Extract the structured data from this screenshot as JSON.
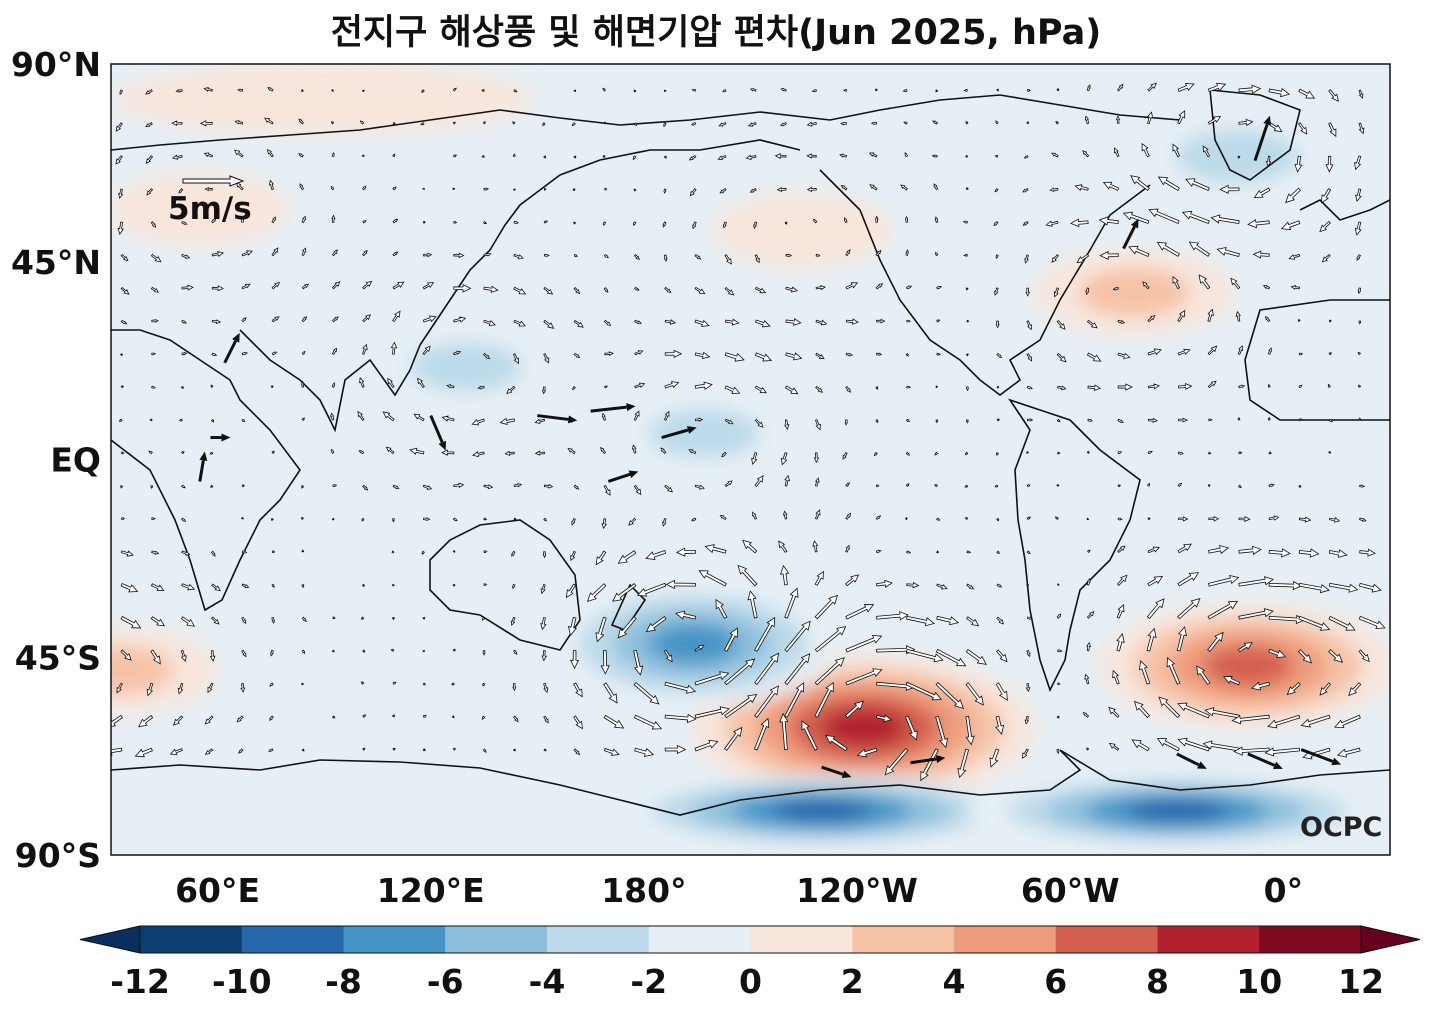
{
  "title": "전지구 해상풍 및 해면기압 편차(Jun 2025, hPa)",
  "credit": "OCPC",
  "reference_vector_label": "5m/s",
  "y_tick_labels": [
    "90°N",
    "45°N",
    "EQ",
    "45°S",
    "90°S"
  ],
  "x_tick_labels": [
    "60°E",
    "120°E",
    "180°",
    "120°W",
    "60°W",
    "0°"
  ],
  "colorbar": {
    "tick_labels": [
      "-12",
      "-10",
      "-8",
      "-6",
      "-4",
      "-2",
      "0",
      "2",
      "4",
      "6",
      "8",
      "10",
      "12"
    ],
    "colors": [
      "#0d3e72",
      "#2668ab",
      "#4594c6",
      "#8ec0dd",
      "#bcdaea",
      "#e6eff5",
      "#f8e6dd",
      "#f6c2a6",
      "#ee9b7b",
      "#d45f4e",
      "#b2222e",
      "#7e0b22"
    ],
    "under_color": "#0a2f5c",
    "over_color": "#67001f"
  },
  "chart_data": {
    "type": "heatmap",
    "title": "전지구 해상풍 및 해면기압 편차(Jun 2025, hPa)",
    "variable": "sea level pressure anomaly (shading) and surface wind anomaly (vectors)",
    "units": "hPa",
    "levels": [
      -12,
      -10,
      -8,
      -6,
      -4,
      -2,
      0,
      2,
      4,
      6,
      8,
      10,
      12
    ],
    "lon_range": [
      30,
      390
    ],
    "lat_range": [
      -90,
      90
    ],
    "anomaly_centers": [
      {
        "lon": 242,
        "lat": -61,
        "value": 9
      },
      {
        "lon": 350,
        "lat": -47,
        "value": 7
      },
      {
        "lon": 194,
        "lat": -42,
        "value": -7
      },
      {
        "lon": 130,
        "lat": 21,
        "value": -3
      },
      {
        "lon": 197,
        "lat": 6,
        "value": -3
      },
      {
        "lon": 347,
        "lat": 69,
        "value": -4
      },
      {
        "lon": 318,
        "lat": 38,
        "value": 3
      },
      {
        "lon": 55,
        "lat": 57,
        "value": 2
      },
      {
        "lon": 90,
        "lat": 82,
        "value": 2
      },
      {
        "lon": 32,
        "lat": -48,
        "value": 3
      },
      {
        "lon": 225,
        "lat": 52,
        "value": 2
      },
      {
        "lon": 230,
        "lat": -80,
        "value": -9
      },
      {
        "lon": 330,
        "lat": -80,
        "value": -9
      }
    ],
    "strong_wind_vectors": [
      {
        "lon": 150,
        "lat": 10,
        "u": 8,
        "v": -1
      },
      {
        "lon": 165,
        "lat": 11,
        "u": 9,
        "v": 1
      },
      {
        "lon": 185,
        "lat": 5,
        "u": 7,
        "v": 2
      },
      {
        "lon": 170,
        "lat": -5,
        "u": 6,
        "v": 2
      },
      {
        "lon": 120,
        "lat": 10,
        "u": 3,
        "v": -7
      },
      {
        "lon": 62,
        "lat": 22,
        "u": 3,
        "v": 6
      },
      {
        "lon": 58,
        "lat": 5,
        "u": 4,
        "v": 0
      },
      {
        "lon": 55,
        "lat": -5,
        "u": 1,
        "v": 6
      },
      {
        "lon": 230,
        "lat": -70,
        "u": 6,
        "v": -2
      },
      {
        "lon": 255,
        "lat": -69,
        "u": 7,
        "v": 1
      },
      {
        "lon": 330,
        "lat": -67,
        "u": 6,
        "v": -3
      },
      {
        "lon": 350,
        "lat": -67,
        "u": 7,
        "v": -3
      },
      {
        "lon": 5,
        "lat": -66,
        "u": 8,
        "v": -3
      },
      {
        "lon": 352,
        "lat": 68,
        "u": 3,
        "v": 9
      },
      {
        "lon": 315,
        "lat": 48,
        "u": 3,
        "v": 6
      }
    ]
  }
}
